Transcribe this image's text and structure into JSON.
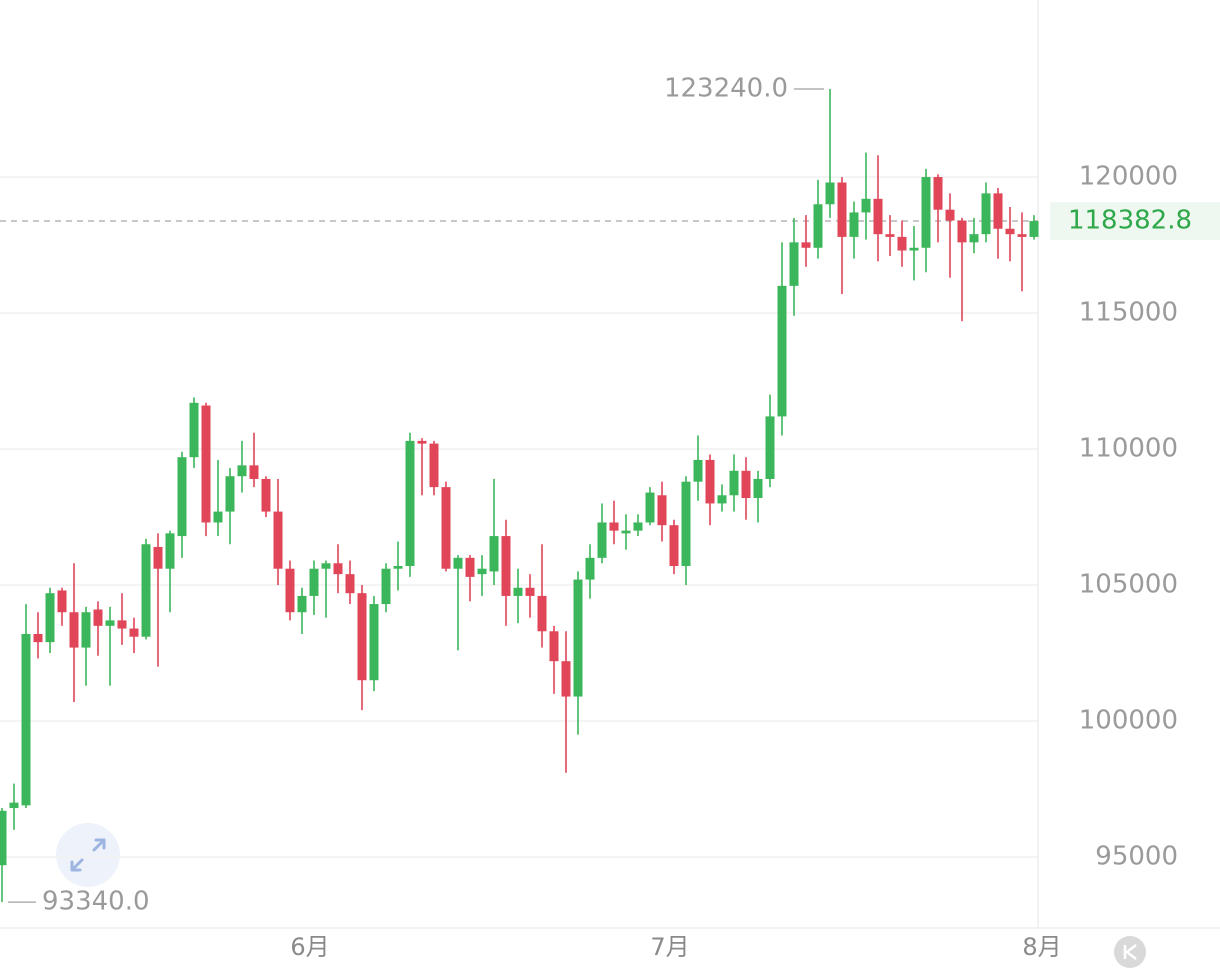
{
  "chart_data": {
    "type": "candlestick",
    "up_color": "#3cb65a",
    "down_color": "#e04558",
    "xlim": [
      0,
      87
    ],
    "xticks": [
      {
        "value": 26,
        "label": "6月"
      },
      {
        "value": 56,
        "label": "7月"
      },
      {
        "value": 87,
        "label": "8月"
      }
    ],
    "ylim": [
      92390,
      126510
    ],
    "yticks": [
      95000,
      100000,
      105000,
      110000,
      115000,
      120000
    ],
    "grid": true,
    "last_price": 118382.8,
    "max_annotation": {
      "value": 123240,
      "index": 69,
      "label": "123240.0"
    },
    "min_annotation": {
      "value": 93340,
      "index": 0,
      "label": "93340.0"
    },
    "open": [
      94700,
      96800,
      96900,
      103200,
      102900,
      104800,
      104000,
      102700,
      104100,
      103500,
      103700,
      103400,
      103100,
      106400,
      105600,
      106800,
      109700,
      111600,
      107300,
      107700,
      109000,
      109400,
      108900,
      107700,
      105600,
      104000,
      104600,
      105600,
      105800,
      105400,
      104700,
      101500,
      104300,
      105600,
      105700,
      110300,
      110200,
      108600,
      105600,
      106000,
      105400,
      105500,
      106800,
      104600,
      104900,
      104600,
      103300,
      102200,
      100900,
      105200,
      106000,
      107300,
      106900,
      107000,
      107300,
      108300,
      107200,
      105700,
      108800,
      109600,
      108000,
      108300,
      109200,
      108200,
      108900,
      111200,
      116000,
      117600,
      117400,
      119000,
      119800,
      117800,
      118700,
      119200,
      117900,
      117800,
      117300,
      117400,
      120000,
      118800,
      118400,
      117600,
      117900,
      119400,
      118100,
      117900,
      117800
    ],
    "high": [
      96800,
      97700,
      104300,
      104000,
      104900,
      104900,
      105800,
      104200,
      104400,
      104200,
      104700,
      103800,
      106700,
      106900,
      107000,
      109900,
      111900,
      111700,
      109600,
      109300,
      110300,
      110600,
      109000,
      108900,
      105900,
      104900,
      105900,
      105900,
      106500,
      105900,
      105000,
      104600,
      105800,
      106600,
      110600,
      110400,
      110300,
      108800,
      106100,
      106100,
      106100,
      108900,
      107400,
      105600,
      105400,
      106500,
      103500,
      103300,
      105500,
      106500,
      108000,
      108100,
      107600,
      107600,
      108600,
      108800,
      107400,
      109000,
      110500,
      109800,
      108700,
      109800,
      109700,
      109200,
      112000,
      117600,
      118500,
      118600,
      119900,
      123240,
      120000,
      119100,
      120900,
      120800,
      118600,
      118400,
      118200,
      120300,
      120100,
      119400,
      118500,
      118500,
      119800,
      119600,
      118900,
      118700,
      118600
    ],
    "low": [
      93340,
      96000,
      96800,
      102300,
      102500,
      103500,
      100700,
      101300,
      102400,
      101300,
      102800,
      102500,
      103000,
      102000,
      104000,
      106000,
      109300,
      106800,
      106800,
      106500,
      108400,
      108600,
      107500,
      105000,
      103700,
      103200,
      103900,
      103800,
      104700,
      104300,
      100400,
      101100,
      104000,
      104800,
      105300,
      108300,
      108300,
      105500,
      102600,
      104400,
      104600,
      105000,
      103500,
      103600,
      103800,
      102700,
      101000,
      98100,
      99500,
      104500,
      105800,
      106500,
      106300,
      106800,
      107200,
      106600,
      105400,
      105000,
      108100,
      107200,
      107700,
      107700,
      107400,
      107300,
      108600,
      110500,
      114900,
      116700,
      117000,
      118500,
      115700,
      117000,
      117700,
      116900,
      117100,
      116700,
      116200,
      116500,
      117600,
      116300,
      114700,
      117200,
      117600,
      117000,
      116900,
      115800,
      117700
    ],
    "close": [
      96700,
      97000,
      103200,
      102900,
      104700,
      104000,
      102700,
      104000,
      103500,
      103700,
      103400,
      103100,
      106500,
      105600,
      106900,
      109700,
      111700,
      107300,
      107700,
      109000,
      109400,
      108900,
      107700,
      105600,
      104000,
      104600,
      105600,
      105800,
      105400,
      104700,
      101500,
      104300,
      105600,
      105700,
      110300,
      110200,
      108600,
      105600,
      106000,
      105300,
      105600,
      106800,
      104600,
      104900,
      104600,
      103300,
      102200,
      100900,
      105200,
      106000,
      107300,
      107000,
      107000,
      107300,
      108400,
      107200,
      105700,
      108800,
      109600,
      108000,
      108300,
      109200,
      108200,
      108900,
      111200,
      116000,
      117600,
      117400,
      119000,
      119800,
      117800,
      118700,
      119200,
      117900,
      117800,
      117300,
      117400,
      120000,
      118800,
      118400,
      117600,
      117900,
      119400,
      118100,
      117900,
      117800,
      118382.8
    ]
  }
}
